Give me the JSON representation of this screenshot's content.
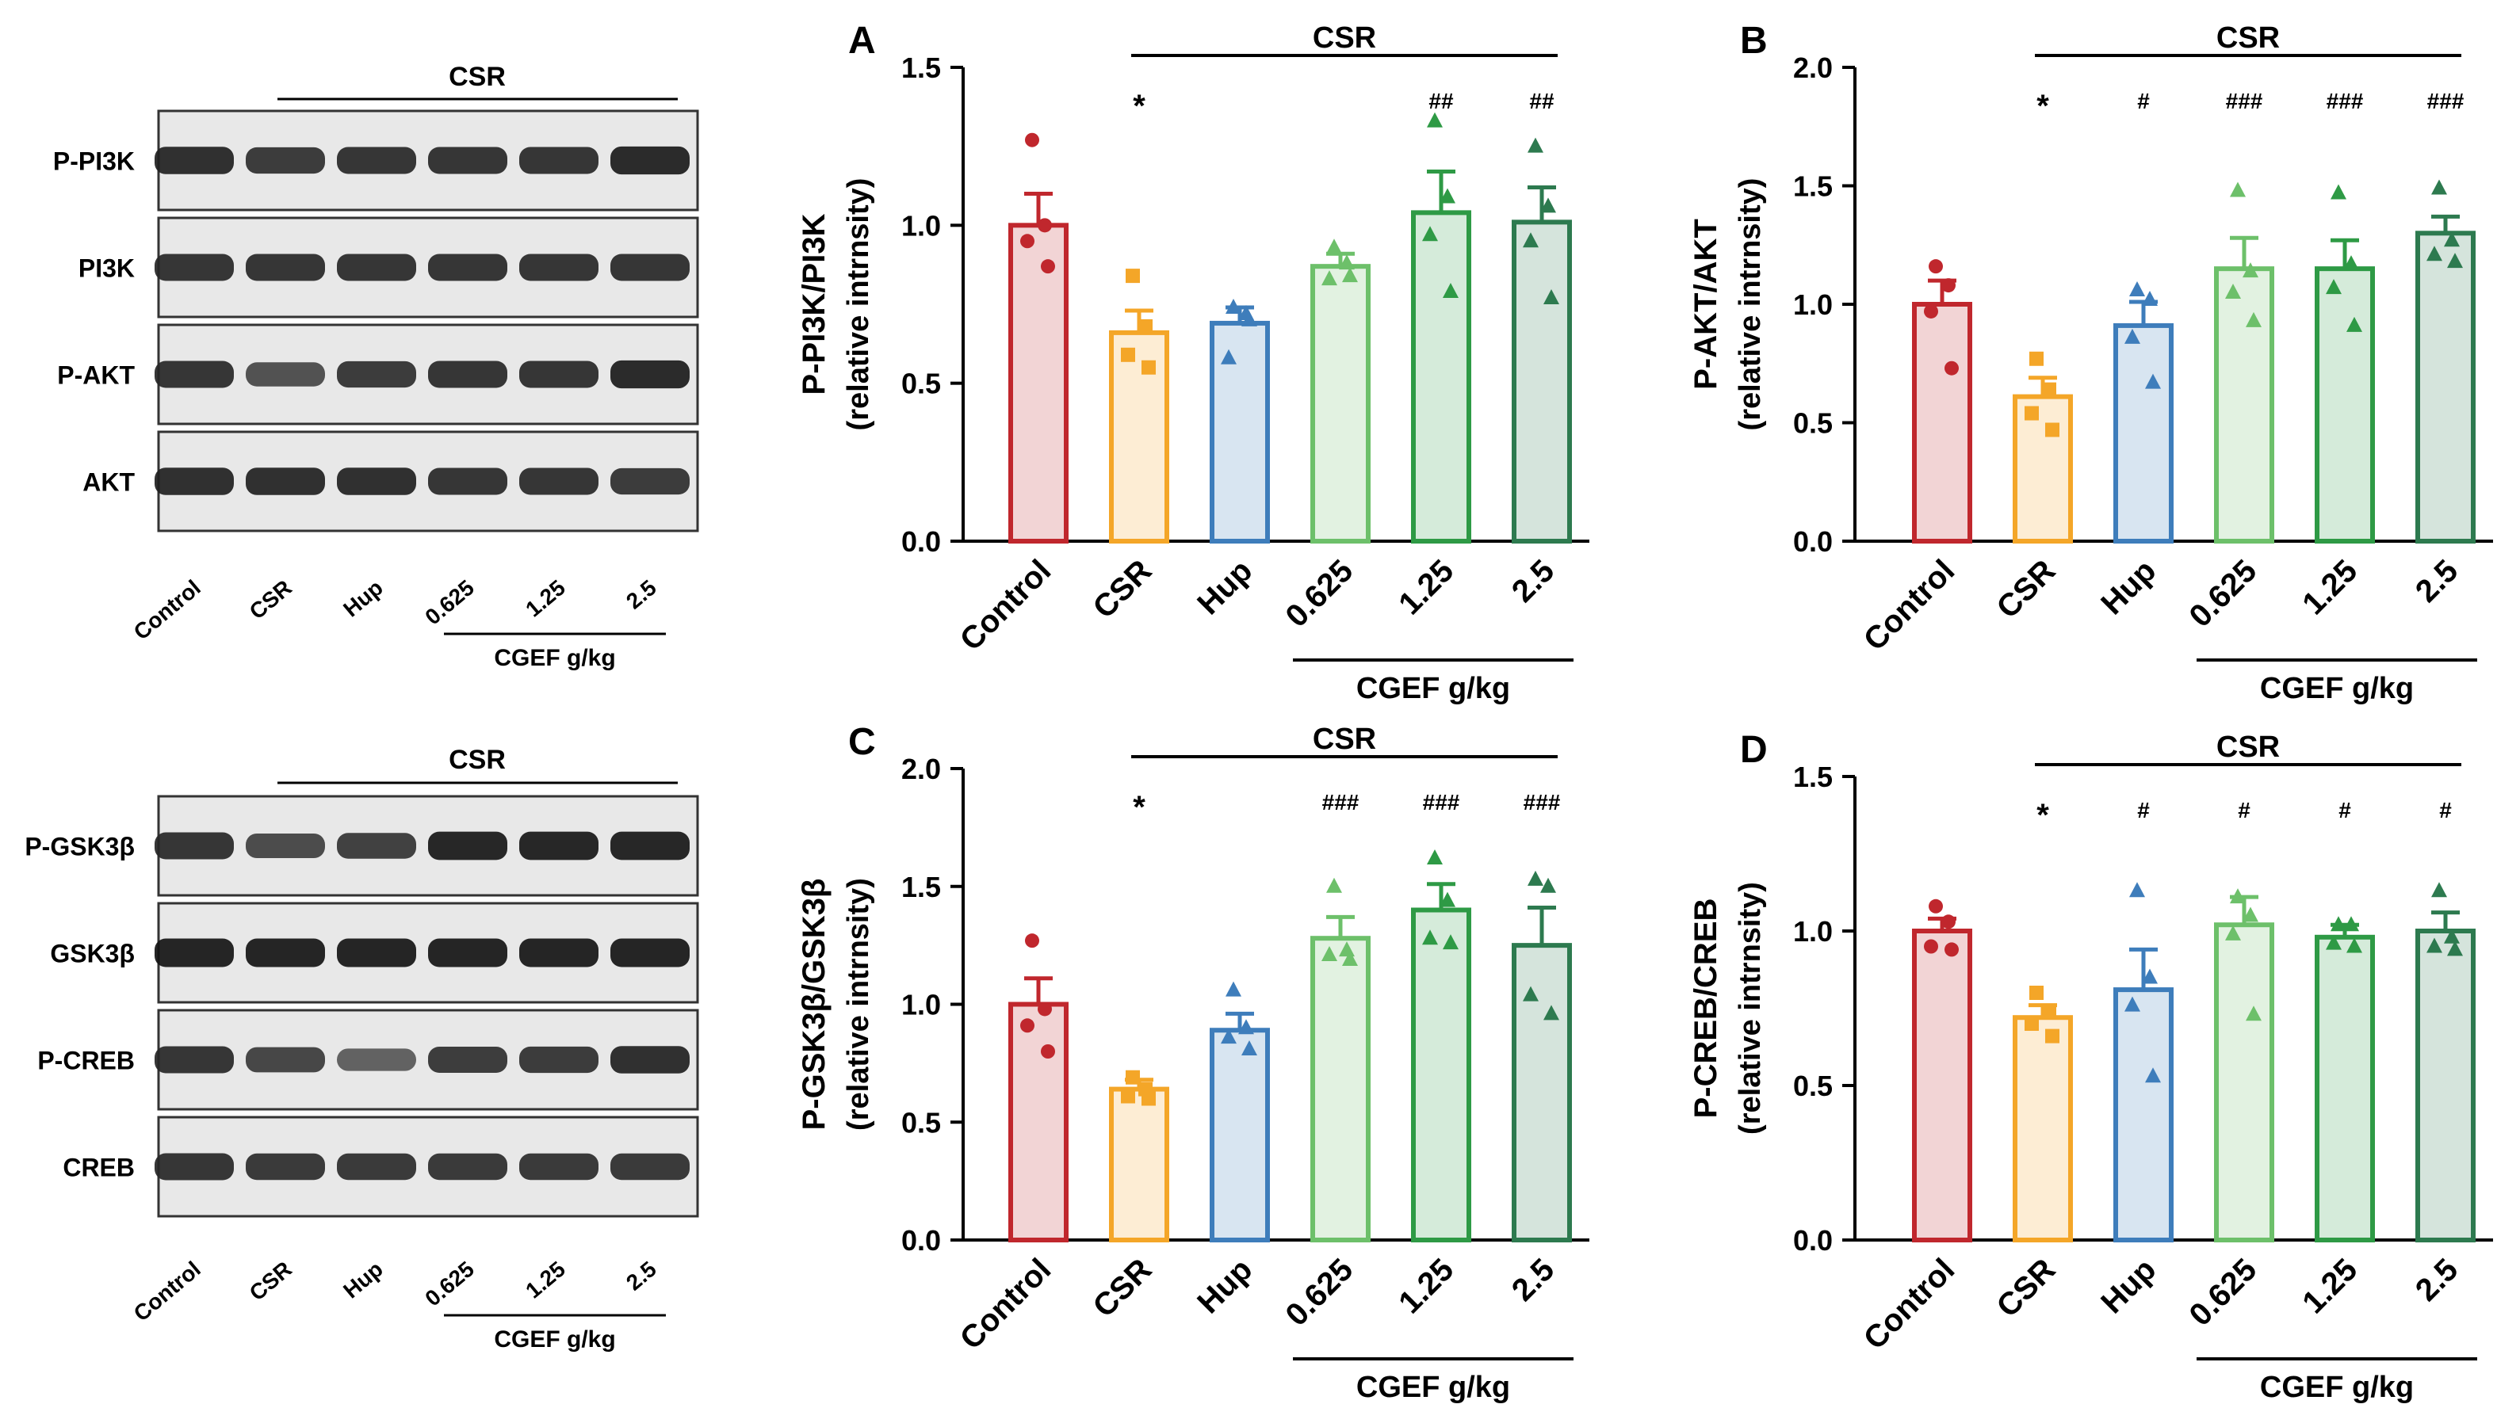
{
  "blots": {
    "top": {
      "group_label": "CSR",
      "rows": [
        "P-PI3K",
        "PI3K",
        "P-AKT",
        "AKT"
      ],
      "lanes": [
        "Control",
        "CSR",
        "Hup",
        "0.625",
        "1.25",
        "2.5"
      ],
      "cgef_label": "CGEF g/kg"
    },
    "bottom": {
      "group_label": "CSR",
      "rows": [
        "P-GSK3β",
        "GSK3β",
        "P-CREB",
        "CREB"
      ],
      "lanes": [
        "Control",
        "CSR",
        "Hup",
        "0.625",
        "1.25",
        "2.5"
      ],
      "cgef_label": "CGEF g/kg"
    }
  },
  "colors": {
    "Control": "#c0272d",
    "CSR": "#f4a628",
    "Hup": "#3e7dbb",
    "0.625": "#6dc06a",
    "1.25": "#2e9a45",
    "2.5": "#2d7a4f"
  },
  "chart_data": [
    {
      "panel": "A",
      "type": "bar",
      "categories": [
        "Control",
        "CSR",
        "Hup",
        "0.625",
        "1.25",
        "2.5"
      ],
      "values": [
        1.0,
        0.66,
        0.69,
        0.87,
        1.04,
        1.01
      ],
      "errors": [
        0.1,
        0.07,
        0.05,
        0.04,
        0.13,
        0.11
      ],
      "points": [
        [
          1.27,
          1.0,
          0.95,
          0.87
        ],
        [
          0.84,
          0.68,
          0.59,
          0.55
        ],
        [
          0.74,
          0.72,
          0.58,
          0.7
        ],
        [
          0.93,
          0.88,
          0.83,
          0.84
        ],
        [
          1.33,
          1.09,
          0.97,
          0.79
        ],
        [
          1.25,
          1.06,
          0.95,
          0.77
        ]
      ],
      "ylabel": "P-PI3K/PI3K",
      "ylabel2": "(relative intrnsity)",
      "ylim": [
        0,
        1.5
      ],
      "yticks": [
        "0.0",
        "0.5",
        "1.0",
        "1.5"
      ],
      "annotations": [
        "",
        "*",
        "",
        "",
        "##",
        "##"
      ],
      "top_label": "CSR",
      "cgef_label": "CGEF g/kg"
    },
    {
      "panel": "B",
      "type": "bar",
      "categories": [
        "Control",
        "CSR",
        "Hup",
        "0.625",
        "1.25",
        "2.5"
      ],
      "values": [
        1.0,
        0.61,
        0.91,
        1.15,
        1.15,
        1.3
      ],
      "errors": [
        0.1,
        0.08,
        0.1,
        0.13,
        0.12,
        0.07
      ],
      "points": [
        [
          1.16,
          1.08,
          0.97,
          0.73
        ],
        [
          0.77,
          0.64,
          0.54,
          0.47
        ],
        [
          1.06,
          1.02,
          0.86,
          0.67
        ],
        [
          1.48,
          1.14,
          1.05,
          0.93
        ],
        [
          1.47,
          1.17,
          1.07,
          0.91
        ],
        [
          1.49,
          1.27,
          1.21,
          1.18
        ]
      ],
      "ylabel": "P-AKT/AKT",
      "ylabel2": "(relative intrnsity)",
      "ylim": [
        0,
        2.0
      ],
      "yticks": [
        "0.0",
        "0.5",
        "1.0",
        "1.5",
        "2.0"
      ],
      "annotations": [
        "",
        "*",
        "#",
        "###",
        "###",
        "###"
      ],
      "top_label": "CSR",
      "cgef_label": "CGEF g/kg"
    },
    {
      "panel": "C",
      "type": "bar",
      "categories": [
        "Control",
        "CSR",
        "Hup",
        "0.625",
        "1.25",
        "2.5"
      ],
      "values": [
        1.0,
        0.64,
        0.89,
        1.28,
        1.4,
        1.25
      ],
      "errors": [
        0.11,
        0.04,
        0.07,
        0.09,
        0.11,
        0.16
      ],
      "points": [
        [
          1.27,
          0.98,
          0.91,
          0.8
        ],
        [
          0.69,
          0.64,
          0.61,
          0.6
        ],
        [
          1.06,
          0.9,
          0.86,
          0.81
        ],
        [
          1.5,
          1.23,
          1.21,
          1.19
        ],
        [
          1.62,
          1.44,
          1.28,
          1.26
        ],
        [
          1.53,
          1.5,
          1.04,
          0.96
        ]
      ],
      "ylabel": "P-GSK3β/GSK3β",
      "ylabel2": "(relative intrnsity)",
      "ylim": [
        0,
        2.0
      ],
      "yticks": [
        "0.0",
        "0.5",
        "1.0",
        "1.5",
        "2.0"
      ],
      "annotations": [
        "",
        "*",
        "",
        "###",
        "###",
        "###"
      ],
      "top_label": "CSR",
      "cgef_label": "CGEF g/kg"
    },
    {
      "panel": "D",
      "type": "bar",
      "categories": [
        "Control",
        "CSR",
        "Hup",
        "0.625",
        "1.25",
        "2.5"
      ],
      "values": [
        1.0,
        0.72,
        0.81,
        1.02,
        0.98,
        1.0
      ],
      "errors": [
        0.04,
        0.04,
        0.13,
        0.09,
        0.04,
        0.06
      ],
      "points": [
        [
          1.08,
          1.03,
          0.95,
          0.94
        ],
        [
          0.8,
          0.74,
          0.7,
          0.66
        ],
        [
          1.13,
          0.85,
          0.76,
          0.53
        ],
        [
          1.11,
          1.05,
          0.99,
          0.73
        ],
        [
          1.02,
          1.02,
          0.96,
          0.95
        ],
        [
          1.13,
          0.98,
          0.95,
          0.94
        ]
      ],
      "ylabel": "P-CREB/CREB",
      "ylabel2": "(relative intrnsity)",
      "ylim": [
        0,
        1.5
      ],
      "yticks": [
        "0.0",
        "0.5",
        "1.0",
        "1.5"
      ],
      "annotations": [
        "",
        "*",
        "#",
        "#",
        "#",
        "#"
      ],
      "top_label": "CSR",
      "cgef_label": "CGEF g/kg"
    }
  ]
}
